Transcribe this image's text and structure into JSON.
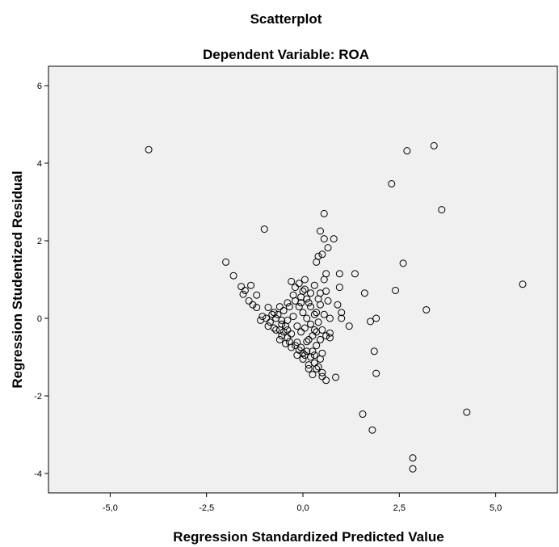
{
  "chart_data": {
    "type": "scatter",
    "title": "Scatterplot",
    "subtitle": "Dependent Variable: ROA",
    "xlabel": "Regression Standardized Predicted Value",
    "ylabel": "Regression Studentized Residual",
    "xlim": [
      -6.6,
      6.6
    ],
    "ylim": [
      -4.5,
      6.5
    ],
    "xticks": [
      -5,
      -2.5,
      0,
      2.5,
      5
    ],
    "xtick_labels": [
      "-5,0",
      "-2,5",
      "0,0",
      "2,5",
      "5,0"
    ],
    "yticks": [
      -4,
      -2,
      0,
      2,
      4,
      6
    ],
    "ytick_labels": [
      "-4",
      "-2",
      "0",
      "2",
      "4",
      "6"
    ],
    "grid": false,
    "plot_background": "#f0f0f0",
    "marker_color": "#000000",
    "points": [
      [
        -4.0,
        4.35
      ],
      [
        2.7,
        4.32
      ],
      [
        3.4,
        4.45
      ],
      [
        2.3,
        3.47
      ],
      [
        3.6,
        2.8
      ],
      [
        5.7,
        0.88
      ],
      [
        4.25,
        -2.42
      ],
      [
        2.85,
        -3.6
      ],
      [
        2.85,
        -3.88
      ],
      [
        1.8,
        -2.88
      ],
      [
        1.55,
        -2.47
      ],
      [
        -1.0,
        2.3
      ],
      [
        0.55,
        2.7
      ],
      [
        0.45,
        2.25
      ],
      [
        0.8,
        2.05
      ],
      [
        0.55,
        2.05
      ],
      [
        0.65,
        1.82
      ],
      [
        0.5,
        1.65
      ],
      [
        0.4,
        1.6
      ],
      [
        0.35,
        1.45
      ],
      [
        0.6,
        1.15
      ],
      [
        0.55,
        1.0
      ],
      [
        0.95,
        1.15
      ],
      [
        -2.0,
        1.45
      ],
      [
        -1.8,
        1.1
      ],
      [
        -1.6,
        0.82
      ],
      [
        -1.5,
        0.72
      ],
      [
        -1.35,
        0.85
      ],
      [
        -1.2,
        0.6
      ],
      [
        -1.55,
        0.62
      ],
      [
        -1.4,
        0.45
      ],
      [
        -1.3,
        0.35
      ],
      [
        -1.2,
        0.28
      ],
      [
        -1.05,
        0.05
      ],
      [
        -0.9,
        0.28
      ],
      [
        -0.8,
        0.1
      ],
      [
        -0.7,
        0.0
      ],
      [
        -0.85,
        -0.1
      ],
      [
        -0.75,
        -0.25
      ],
      [
        -0.6,
        -0.3
      ],
      [
        -0.5,
        -0.35
      ],
      [
        -0.55,
        -0.45
      ],
      [
        -0.4,
        -0.5
      ],
      [
        -0.35,
        -0.6
      ],
      [
        -0.2,
        -0.7
      ],
      [
        -0.1,
        -0.82
      ],
      [
        0.0,
        -0.9
      ],
      [
        0.1,
        -0.85
      ],
      [
        0.2,
        -1.0
      ],
      [
        0.3,
        -1.15
      ],
      [
        0.4,
        -1.25
      ],
      [
        0.5,
        -1.4
      ],
      [
        0.6,
        -1.6
      ],
      [
        0.85,
        -1.52
      ],
      [
        0.5,
        -1.5
      ],
      [
        0.25,
        -1.45
      ],
      [
        0.15,
        -1.2
      ],
      [
        0.05,
        -0.95
      ],
      [
        -0.05,
        -0.75
      ],
      [
        -0.15,
        -0.62
      ],
      [
        -0.3,
        -0.4
      ],
      [
        -0.45,
        -0.2
      ],
      [
        -0.55,
        -0.05
      ],
      [
        -0.65,
        0.1
      ],
      [
        -0.5,
        0.2
      ],
      [
        -0.35,
        0.3
      ],
      [
        -0.2,
        0.45
      ],
      [
        -0.1,
        0.3
      ],
      [
        0.0,
        0.15
      ],
      [
        0.1,
        0.0
      ],
      [
        0.2,
        -0.15
      ],
      [
        0.3,
        -0.3
      ],
      [
        0.45,
        -0.55
      ],
      [
        0.6,
        -0.45
      ],
      [
        0.7,
        -0.38
      ],
      [
        0.7,
        -0.5
      ],
      [
        0.5,
        -0.3
      ],
      [
        0.4,
        -0.1
      ],
      [
        0.3,
        0.1
      ],
      [
        0.2,
        0.3
      ],
      [
        0.1,
        0.5
      ],
      [
        0.0,
        0.7
      ],
      [
        -0.1,
        0.9
      ],
      [
        -0.3,
        0.95
      ],
      [
        -0.2,
        0.8
      ],
      [
        0.05,
        1.0
      ],
      [
        0.3,
        0.85
      ],
      [
        0.45,
        0.65
      ],
      [
        0.6,
        0.7
      ],
      [
        0.65,
        0.45
      ],
      [
        0.45,
        0.35
      ],
      [
        0.35,
        0.15
      ],
      [
        0.55,
        0.1
      ],
      [
        0.7,
        0.0
      ],
      [
        0.9,
        0.35
      ],
      [
        1.0,
        0.15
      ],
      [
        0.95,
        0.8
      ],
      [
        1.35,
        1.15
      ],
      [
        1.6,
        0.65
      ],
      [
        2.4,
        0.72
      ],
      [
        2.6,
        1.42
      ],
      [
        3.2,
        0.22
      ],
      [
        1.2,
        -0.2
      ],
      [
        1.9,
        0.0
      ],
      [
        1.75,
        -0.08
      ],
      [
        1.85,
        -0.85
      ],
      [
        1.9,
        -1.42
      ],
      [
        -0.25,
        0.05
      ],
      [
        -0.4,
        -0.05
      ],
      [
        -0.55,
        -0.15
      ],
      [
        -0.7,
        -0.3
      ],
      [
        -0.6,
        -0.55
      ],
      [
        -0.45,
        -0.65
      ],
      [
        -0.3,
        -0.75
      ],
      [
        -0.15,
        -0.95
      ],
      [
        0.0,
        -1.05
      ],
      [
        0.15,
        -0.55
      ],
      [
        0.25,
        -0.45
      ],
      [
        0.35,
        -0.7
      ],
      [
        0.5,
        -0.9
      ],
      [
        0.25,
        -0.85
      ],
      [
        -0.05,
        -0.35
      ],
      [
        -0.15,
        -0.2
      ],
      [
        0.05,
        -0.25
      ],
      [
        0.15,
        0.4
      ],
      [
        -0.05,
        0.55
      ],
      [
        -0.25,
        0.6
      ],
      [
        -0.4,
        0.4
      ],
      [
        -0.6,
        0.3
      ],
      [
        -0.75,
        0.15
      ],
      [
        -0.95,
        0.0
      ],
      [
        -1.1,
        -0.05
      ],
      [
        -0.9,
        -0.2
      ],
      [
        -0.4,
        -0.3
      ],
      [
        0.1,
        -0.6
      ],
      [
        0.3,
        -0.95
      ],
      [
        0.45,
        -1.05
      ],
      [
        0.2,
        0.65
      ],
      [
        0.4,
        0.5
      ],
      [
        0.15,
        -1.3
      ],
      [
        0.35,
        -1.3
      ],
      [
        0.05,
        0.75
      ],
      [
        -0.05,
        0.4
      ],
      [
        0.35,
        -0.35
      ],
      [
        1.0,
        0.0
      ]
    ]
  }
}
